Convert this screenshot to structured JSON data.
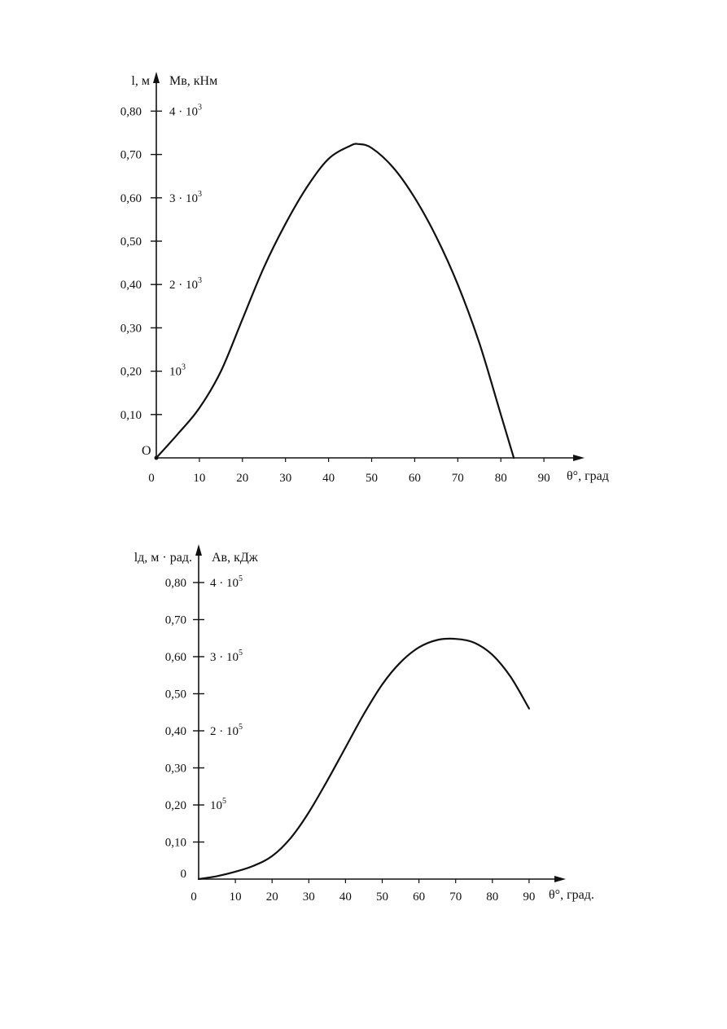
{
  "chart_data": [
    {
      "type": "line",
      "title": "",
      "xlabel": "θ°, град",
      "ylabel": "l, м",
      "y2label": "Mв, кНм",
      "origin_label": "O",
      "x_zero_label": "0",
      "xlim": [
        0,
        95
      ],
      "ylim": [
        0,
        0.82
      ],
      "x_ticks": [
        "10",
        "20",
        "30",
        "40",
        "50",
        "60",
        "70",
        "80",
        "90"
      ],
      "y_ticks": [
        "0,10",
        "0,20",
        "0,30",
        "0,40",
        "0,50",
        "0,60",
        "0,70",
        "0,80"
      ],
      "y_zero_label": "",
      "y2_ticks": [
        {
          "y": 0.2,
          "base": "10",
          "exp": "3",
          "mult": ""
        },
        {
          "y": 0.4,
          "base": "10",
          "exp": "3",
          "mult": "2 · "
        },
        {
          "y": 0.6,
          "base": "10",
          "exp": "3",
          "mult": "3 · "
        },
        {
          "y": 0.8,
          "base": "10",
          "exp": "3",
          "mult": "4 · "
        }
      ],
      "grid": false,
      "series": [
        {
          "x": [
            0,
            5,
            10,
            15,
            20,
            25,
            30,
            35,
            40,
            45,
            47,
            50,
            55,
            60,
            65,
            70,
            75,
            80,
            83
          ],
          "y": [
            0,
            0.055,
            0.115,
            0.2,
            0.32,
            0.44,
            0.54,
            0.625,
            0.69,
            0.72,
            0.724,
            0.715,
            0.67,
            0.6,
            0.51,
            0.4,
            0.265,
            0.1,
            0
          ]
        }
      ]
    },
    {
      "type": "line",
      "title": "",
      "xlabel": "θ°, град.",
      "ylabel": "lд, м · рад.",
      "ylabel_sub": "д",
      "y2label": "Aв, кДж",
      "origin_label": "",
      "x_zero_label": "0",
      "xlim": [
        0,
        95
      ],
      "ylim": [
        0,
        0.82
      ],
      "x_ticks": [
        "10",
        "20",
        "30",
        "40",
        "50",
        "60",
        "70",
        "80",
        "90"
      ],
      "y_ticks": [
        "0,10",
        "0,20",
        "0,30",
        "0,40",
        "0,50",
        "0,60",
        "0,70",
        "0,80"
      ],
      "y_zero_label": "0",
      "y2_ticks": [
        {
          "y": 0.2,
          "base": "10",
          "exp": "5",
          "mult": ""
        },
        {
          "y": 0.4,
          "base": "10",
          "exp": "5",
          "mult": "2 · "
        },
        {
          "y": 0.6,
          "base": "10",
          "exp": "5",
          "mult": "3 · "
        },
        {
          "y": 0.8,
          "base": "10",
          "exp": "5",
          "mult": "4 · "
        }
      ],
      "grid": false,
      "series": [
        {
          "x": [
            0,
            5,
            10,
            15,
            20,
            25,
            30,
            35,
            40,
            45,
            50,
            55,
            60,
            65,
            70,
            75,
            80,
            85,
            90
          ],
          "y": [
            0,
            0.008,
            0.02,
            0.036,
            0.062,
            0.11,
            0.18,
            0.265,
            0.355,
            0.445,
            0.525,
            0.585,
            0.625,
            0.645,
            0.648,
            0.638,
            0.605,
            0.545,
            0.46
          ]
        }
      ]
    }
  ]
}
